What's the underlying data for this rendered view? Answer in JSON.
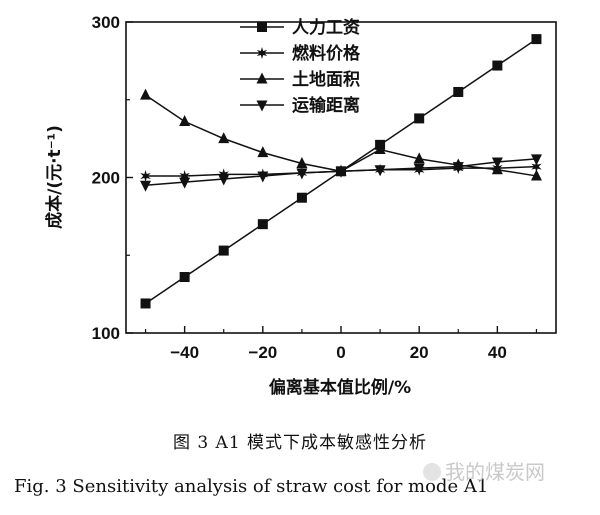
{
  "chart_data": {
    "type": "line",
    "title": "",
    "xlabel": "偏离基本值比例/%",
    "ylabel": "成本/(元·t⁻¹)",
    "xlim": [
      -55,
      55
    ],
    "ylim": [
      100,
      300
    ],
    "xticks": [
      -40,
      -20,
      0,
      20,
      40
    ],
    "xtick_labels": [
      "−40",
      "−20",
      "0",
      "20",
      "40"
    ],
    "yticks": [
      100,
      200,
      300
    ],
    "grid": false,
    "legend": "top-right",
    "x": [
      -50,
      -40,
      -30,
      -20,
      -10,
      0,
      10,
      20,
      30,
      40,
      50
    ],
    "series": [
      {
        "name": "人力工资",
        "marker": "square",
        "values": [
          119,
          136,
          153,
          170,
          187,
          204,
          221,
          238,
          255,
          272,
          289
        ]
      },
      {
        "name": "燃料价格",
        "marker": "star",
        "values": [
          201,
          201,
          202,
          202,
          203,
          204,
          205,
          205,
          206,
          206,
          207
        ]
      },
      {
        "name": "土地面积",
        "marker": "triangle-up",
        "values": [
          253,
          236,
          225,
          216,
          209,
          204,
          218,
          212,
          208,
          205,
          201
        ]
      },
      {
        "name": "运输距离",
        "marker": "triangle-down",
        "values": [
          195,
          197,
          199,
          201,
          203,
          204,
          205,
          206,
          207,
          210,
          212
        ]
      }
    ]
  },
  "caption": {
    "cn": "图 3   A1 模式下成本敏感性分析",
    "en": "Fig. 3   Sensitivity analysis of straw cost for mode A1"
  },
  "watermark": "我的煤炭网"
}
